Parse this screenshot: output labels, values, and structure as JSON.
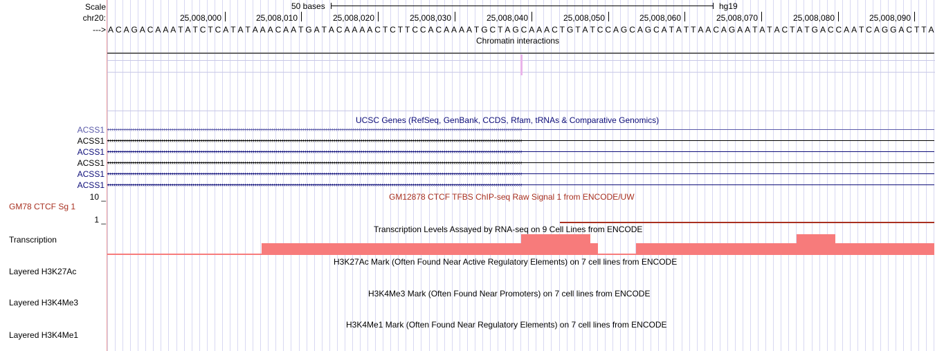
{
  "ruler": {
    "scale_label": "Scale",
    "chrom_label": "chr20:",
    "strand_label": "--->",
    "scale_text": "50 bases",
    "assembly": "hg19",
    "positions": [
      "25,008,000",
      "25,008,010",
      "25,008,020",
      "25,008,030",
      "25,008,040",
      "25,008,050",
      "25,008,060",
      "25,008,070",
      "25,008,080",
      "25,008,090"
    ]
  },
  "sequence": "ACAGACAAATATCTCATATAAACAATGATACAAAACTCTTCCACAAAATGCTAGCAAACTGTATCCAGCAGCATATTAACAGAATATACTATGACCAATCAGGACTTA",
  "tracks": {
    "chromatin": {
      "title": "Chromatin interactions"
    },
    "ucsc_genes": {
      "title": "UCSC Genes (RefSeq, GenBank, CCDS, Rfam, tRNAs & Comparative Genomics)",
      "genes": [
        {
          "label": "ACSS1",
          "color": "#5a5aa8"
        },
        {
          "label": "ACSS1",
          "color": "#000000"
        },
        {
          "label": "ACSS1",
          "color": "#0c0c78"
        },
        {
          "label": "ACSS1",
          "color": "#000000"
        },
        {
          "label": "ACSS1",
          "color": "#0c0c78"
        },
        {
          "label": "ACSS1",
          "color": "#0c0c78"
        }
      ]
    },
    "ctcf": {
      "title": "GM12878 CTCF TFBS ChIP-seq Raw Signal 1 from ENCODE/UW",
      "label": "GM78 CTCF Sg 1",
      "max_label": "10 _",
      "min_label": "1 _",
      "color": "#a83020"
    },
    "transcription": {
      "title": "Transcription Levels Assayed by RNA-seq on 9 Cell Lines from ENCODE",
      "label": "Transcription",
      "color": "#f77b7b"
    },
    "h3k27ac": {
      "title": "H3K27Ac Mark (Often Found Near Active Regulatory Elements) on 7 cell lines from ENCODE",
      "label": "Layered H3K27Ac"
    },
    "h3k4me3": {
      "title": "H3K4Me3 Mark (Often Found Near Promoters) on 7 cell lines from ENCODE",
      "label": "Layered H3K4Me3"
    },
    "h3k4me1": {
      "title": "H3K4Me1 Mark (Often Found Near Regulatory Elements) on 7 cell lines from ENCODE",
      "label": "Layered H3K4Me1"
    }
  }
}
